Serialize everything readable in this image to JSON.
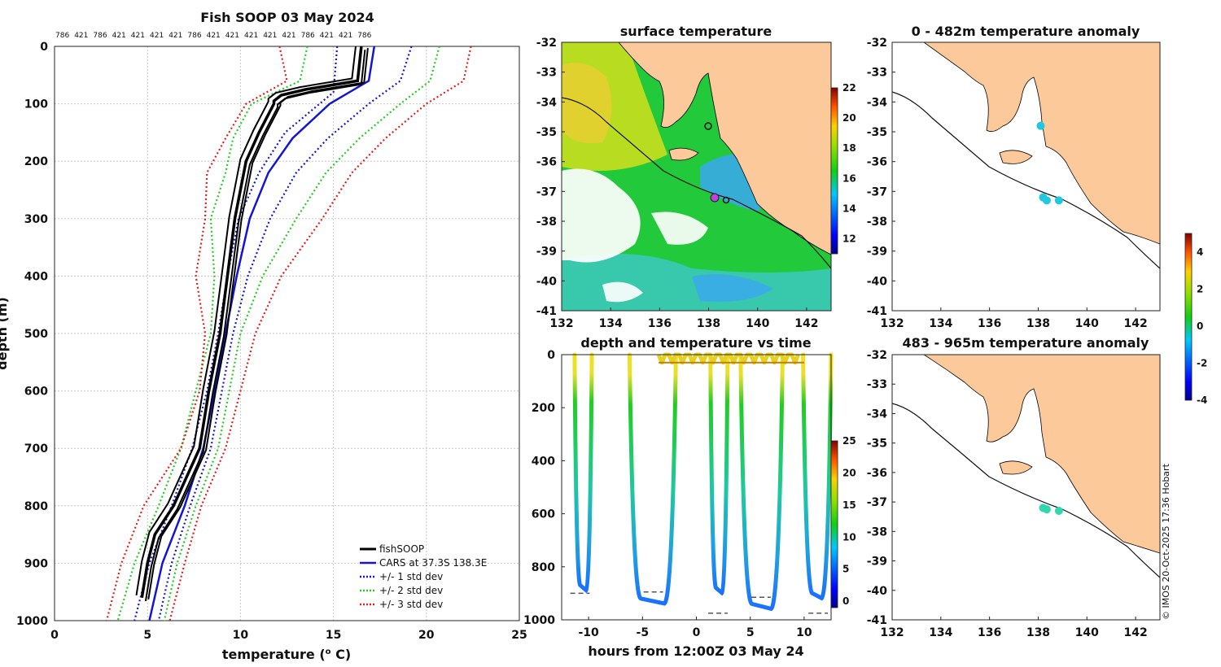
{
  "colors": {
    "land": "#fbc99a",
    "cars": "#1414d8",
    "std1": "#1414d8",
    "std2": "#22cc22",
    "std3": "#e01e1e",
    "fish": "#000000"
  },
  "chart_data": [
    {
      "type": "line",
      "title": "Fish SOOP 03 May 2024",
      "top_labels": [
        "786",
        "421",
        "786",
        "421",
        "421",
        "421",
        "421",
        "786",
        "421",
        "421",
        "421",
        "421",
        "421",
        "786",
        "421",
        "421",
        "786"
      ],
      "xlabel": "temperature (o C)",
      "ylabel": "depth (m)",
      "xlim": [
        0,
        25
      ],
      "ylim": [
        1000,
        0
      ],
      "xticks": [
        "0",
        "5",
        "10",
        "15",
        "20",
        "25"
      ],
      "yticks": [
        "0",
        "100",
        "200",
        "300",
        "400",
        "500",
        "600",
        "700",
        "800",
        "900",
        "1000"
      ],
      "legend": [
        "fishSOOP",
        "CARS at 37.3S 138.3E",
        "+/- 1 std dev",
        "+/- 2 std dev",
        "+/- 3 std dev"
      ],
      "series": [
        {
          "name": "CARS at 37.3S 138.3E",
          "depth": [
            0,
            60,
            100,
            160,
            220,
            300,
            400,
            500,
            600,
            700,
            800,
            900,
            1000
          ],
          "temp": [
            17.2,
            16.9,
            14.8,
            12.8,
            11.5,
            10.5,
            9.8,
            9.2,
            8.6,
            8.0,
            7.0,
            5.8,
            5.1
          ]
        },
        {
          "name": "+/- 1 std dev (low)",
          "depth": [
            0,
            80,
            150,
            220,
            300,
            400,
            500,
            600,
            700,
            800,
            900,
            1000
          ],
          "temp": [
            15.2,
            15.0,
            12.4,
            11.0,
            9.9,
            9.3,
            8.8,
            8.2,
            7.4,
            6.3,
            5.1,
            4.3
          ]
        },
        {
          "name": "+/- 1 std dev (high)",
          "depth": [
            0,
            60,
            100,
            160,
            220,
            300,
            400,
            500,
            600,
            700,
            800,
            900,
            1000
          ],
          "temp": [
            19.2,
            18.6,
            16.9,
            14.7,
            13.0,
            11.6,
            10.4,
            9.6,
            9.0,
            8.4,
            7.3,
            6.3,
            5.6
          ]
        },
        {
          "name": "+/- 2 std dev (low)",
          "depth": [
            0,
            60,
            100,
            160,
            220,
            300,
            400,
            500,
            600,
            700,
            800,
            900,
            1000
          ],
          "temp": [
            13.6,
            13.2,
            10.6,
            9.6,
            9.2,
            8.4,
            8.6,
            8.4,
            7.6,
            6.8,
            5.6,
            4.3,
            3.4
          ]
        },
        {
          "name": "+/- 2 std dev (high)",
          "depth": [
            0,
            60,
            100,
            160,
            220,
            300,
            400,
            500,
            600,
            700,
            800,
            900,
            1000
          ],
          "temp": [
            20.7,
            20.2,
            18.6,
            16.4,
            14.6,
            13.0,
            11.2,
            10.0,
            9.4,
            8.8,
            7.6,
            6.6,
            5.9
          ]
        },
        {
          "name": "+/- 3 std dev (low)",
          "depth": [
            0,
            60,
            100,
            160,
            220,
            300,
            400,
            500,
            600,
            700,
            800,
            900,
            1000
          ],
          "temp": [
            12.1,
            12.5,
            10.3,
            9.2,
            8.2,
            8.1,
            7.6,
            8.1,
            7.8,
            6.8,
            4.8,
            3.6,
            2.8
          ]
        },
        {
          "name": "+/- 3 std dev (high)",
          "depth": [
            0,
            60,
            100,
            160,
            220,
            300,
            400,
            500,
            600,
            700,
            800,
            900,
            1000
          ],
          "temp": [
            22.4,
            22.0,
            20.0,
            17.8,
            16.0,
            14.4,
            12.2,
            10.8,
            10.0,
            9.2,
            7.9,
            7.0,
            6.2
          ]
        },
        {
          "name": "fishSOOP",
          "depth": [
            0,
            60,
            75,
            85,
            95,
            100,
            150,
            200,
            300,
            400,
            500,
            600,
            700,
            800,
            850,
            900,
            960
          ],
          "temp": [
            16.5,
            16.3,
            13.5,
            12.2,
            11.8,
            11.8,
            11.0,
            10.3,
            9.7,
            9.3,
            8.9,
            8.3,
            7.8,
            6.4,
            5.4,
            5.0,
            4.7
          ]
        }
      ]
    },
    {
      "type": "heatmap",
      "title": "surface temperature",
      "xlim": [
        132,
        143
      ],
      "ylim": [
        -41,
        -32
      ],
      "xticks": [
        "132",
        "134",
        "136",
        "138",
        "140",
        "142"
      ],
      "yticks": [
        "-32",
        "-33",
        "-34",
        "-35",
        "-36",
        "-37",
        "-38",
        "-39",
        "-40",
        "-41"
      ],
      "colorbar": {
        "min": 11,
        "max": 22,
        "ticks": [
          "12",
          "14",
          "16",
          "18",
          "20",
          "22"
        ]
      }
    },
    {
      "type": "scatter",
      "title": "depth and temperature vs time",
      "xlabel": "hours from 12:00Z 03 May 24",
      "xlim": [
        -12.5,
        12.5
      ],
      "ylim": [
        1000,
        0
      ],
      "xticks": [
        "-10",
        "-5",
        "0",
        "5",
        "10"
      ],
      "yticks": [
        "0",
        "200",
        "400",
        "600",
        "800",
        "1000"
      ],
      "colorbar": {
        "min": -1,
        "max": 25,
        "ticks": [
          "0",
          "5",
          "10",
          "15",
          "20",
          "25"
        ]
      },
      "dives": [
        {
          "start": -11.3,
          "end": -9.7,
          "bottom": 870
        },
        {
          "start": -6.2,
          "end": -1.9,
          "bottom": 920
        },
        {
          "start": 1.3,
          "end": 2.9,
          "bottom": 880
        },
        {
          "start": 4.1,
          "end": 8.0,
          "bottom": 940
        },
        {
          "start": 9.9,
          "end": 12.5,
          "bottom": 900
        }
      ],
      "bottom_marks": [
        {
          "x": -10.8,
          "d": 900
        },
        {
          "x": -4.0,
          "d": 895
        },
        {
          "x": 2.0,
          "d": 975
        },
        {
          "x": 6.0,
          "d": 915
        },
        {
          "x": 11.3,
          "d": 975
        }
      ]
    },
    {
      "type": "scatter",
      "title": "0 - 482m temperature anomaly",
      "xlim": [
        132,
        143
      ],
      "ylim": [
        -41,
        -32
      ],
      "xticks": [
        "132",
        "134",
        "136",
        "138",
        "140",
        "142"
      ],
      "yticks": [
        "-32",
        "-33",
        "-34",
        "-35",
        "-36",
        "-37",
        "-38",
        "-39",
        "-40",
        "-41"
      ],
      "points": [
        {
          "lon": 138.1,
          "lat": -34.8,
          "anom": -1.5
        },
        {
          "lon": 138.2,
          "lat": -37.2,
          "anom": -1.0
        },
        {
          "lon": 138.35,
          "lat": -37.3,
          "anom": -1.2
        },
        {
          "lon": 138.85,
          "lat": -37.3,
          "anom": -0.8
        }
      ]
    },
    {
      "type": "scatter",
      "title": "483 - 965m temperature anomaly",
      "xlim": [
        132,
        143
      ],
      "ylim": [
        -41,
        -32
      ],
      "xticks": [
        "132",
        "134",
        "136",
        "138",
        "140",
        "142"
      ],
      "yticks": [
        "-32",
        "-33",
        "-34",
        "-35",
        "-36",
        "-37",
        "-38",
        "-39",
        "-40",
        "-41"
      ],
      "colorbar": {
        "min": -4,
        "max": 5,
        "ticks": [
          "4",
          "2",
          "0",
          "-2",
          "-4"
        ]
      },
      "points": [
        {
          "lon": 138.2,
          "lat": -37.2,
          "anom": 0.3
        },
        {
          "lon": 138.35,
          "lat": -37.25,
          "anom": 0.2
        },
        {
          "lon": 138.85,
          "lat": -37.3,
          "anom": 0.2
        }
      ]
    }
  ],
  "watermark": "© IMOS 20-Oct-2025 17:36 Hobart"
}
